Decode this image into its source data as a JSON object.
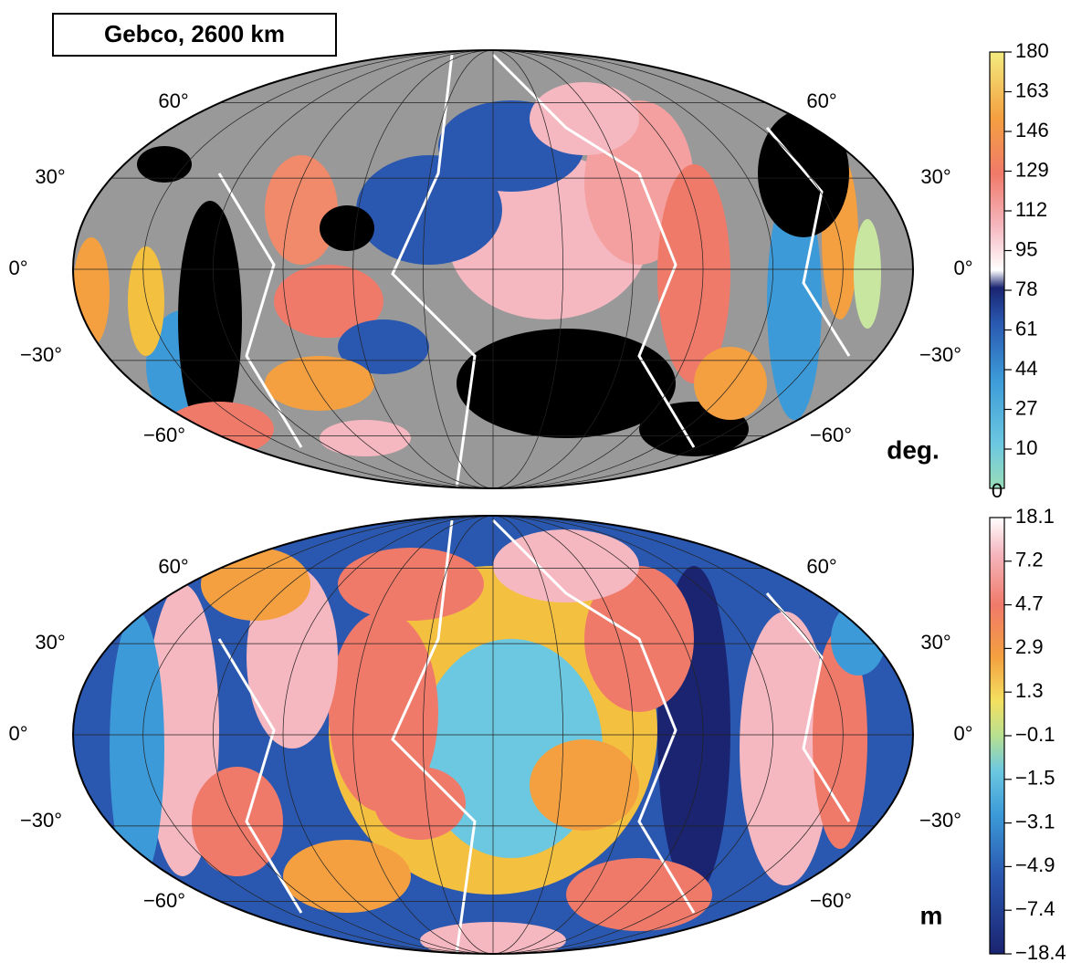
{
  "title": "Gebco, 2600 km",
  "maps": [
    {
      "unit": "deg.",
      "lat_labels_left": [
        "60°",
        "30°",
        "0°",
        "−30°",
        "−60°"
      ],
      "lat_labels_right": [
        "60°",
        "30°",
        "0°",
        "−30°",
        "−60°"
      ],
      "colorbar_labels": [
        "180",
        "163",
        "146",
        "129",
        "112",
        "95",
        "78",
        "61",
        "44",
        "27",
        "10",
        "0"
      ]
    },
    {
      "unit": "m",
      "lat_labels_left": [
        "60°",
        "30°",
        "0°",
        "−30°",
        "−60°"
      ],
      "lat_labels_right": [
        "60°",
        "30°",
        "0°",
        "−30°",
        "−60°"
      ],
      "colorbar_labels": [
        "18.1",
        "7.2",
        "4.7",
        "2.9",
        "1.3",
        "−0.1",
        "−1.5",
        "−3.1",
        "−4.9",
        "−7.4",
        "−18.4"
      ]
    }
  ]
}
